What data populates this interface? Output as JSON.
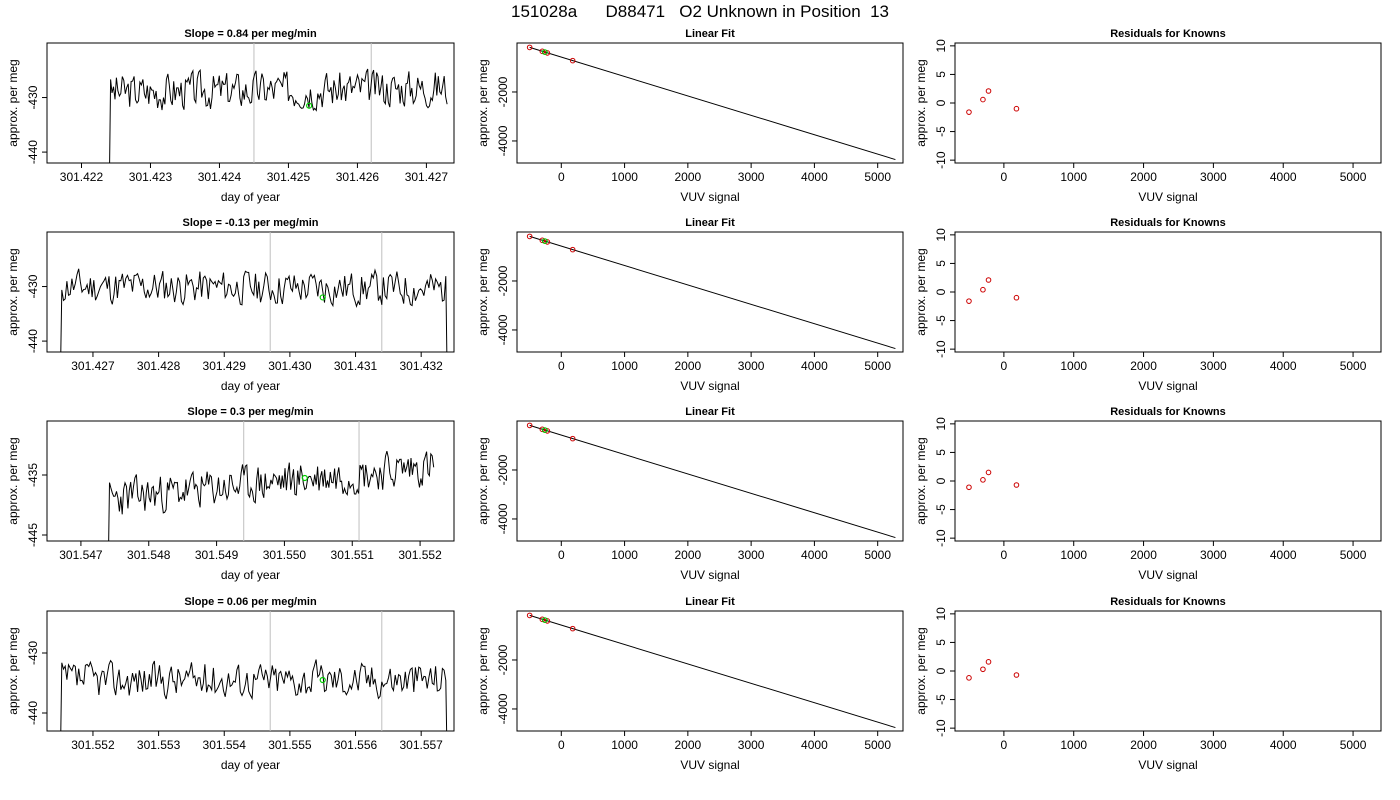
{
  "main_title": "151028a      D88471   O2 Unknown in Position  13",
  "colors": {
    "trace": "#000000",
    "marker_green": "#00cc00",
    "marker_red": "#cc0000",
    "vline": "#bfbfbf",
    "frame": "#000000"
  },
  "chart_data": [
    {
      "type": "line",
      "title": "Slope =  0.84  per meg/min",
      "xlabel": "day of year",
      "ylabel": "approx. per meg",
      "xlim": [
        301.4215,
        301.4274
      ],
      "ylim": [
        -442,
        -420
      ],
      "xticks": [
        301.422,
        301.423,
        301.424,
        301.425,
        301.426,
        301.427
      ],
      "xtick_labels": [
        "301.422",
        "301.423",
        "301.424",
        "301.425",
        "301.426",
        "301.427"
      ],
      "yticks": [
        -430,
        -440
      ],
      "ytick_labels": [
        "-430",
        "-440"
      ],
      "start_x": 301.4224,
      "end_x": 301.4273,
      "base": -429,
      "amp": 3.2,
      "trend": 0.9,
      "seed": 3,
      "vlines": [
        301.4245,
        301.4262
      ],
      "marker": {
        "x": 301.4253,
        "y": -431.5
      }
    },
    {
      "type": "scatter",
      "title": "Linear Fit",
      "xlabel": "VUV signal",
      "ylabel": "approx. per meg",
      "xlim": [
        -700,
        5400
      ],
      "ylim": [
        -4900,
        0
      ],
      "xticks": [
        0,
        1000,
        2000,
        3000,
        4000,
        5000
      ],
      "xtick_labels": [
        "0",
        "1000",
        "2000",
        "3000",
        "4000",
        "5000"
      ],
      "yticks": [
        -2000,
        -4000
      ],
      "ytick_labels": [
        "-2000",
        "-4000"
      ],
      "fit_line": {
        "x": [
          -500,
          5280
        ],
        "y": [
          -180,
          -4760
        ]
      },
      "knowns": [
        {
          "x": -500,
          "y": -180
        },
        {
          "x": -300,
          "y": -340
        },
        {
          "x": -220,
          "y": -405
        },
        {
          "x": 180,
          "y": -720
        }
      ],
      "unknown": {
        "x": -260,
        "y": -372
      }
    },
    {
      "type": "scatter",
      "title": "Residuals for Knowns",
      "xlabel": "VUV signal",
      "ylabel": "approx. per meg",
      "xlim": [
        -700,
        5400
      ],
      "ylim": [
        -10.5,
        10.5
      ],
      "xticks": [
        0,
        1000,
        2000,
        3000,
        4000,
        5000
      ],
      "xtick_labels": [
        "0",
        "1000",
        "2000",
        "3000",
        "4000",
        "5000"
      ],
      "yticks": [
        10,
        5,
        0,
        -5,
        -10
      ],
      "ytick_labels": [
        "10",
        "5",
        "0",
        "-5",
        "-10"
      ],
      "points": [
        {
          "x": -500,
          "y": -1.6
        },
        {
          "x": -300,
          "y": 0.6
        },
        {
          "x": -220,
          "y": 2.1
        },
        {
          "x": 180,
          "y": -1.0
        }
      ]
    },
    {
      "type": "line",
      "title": "Slope =  -0.13  per meg/min",
      "xlabel": "day of year",
      "ylabel": "approx. per meg",
      "xlim": [
        301.4263,
        301.4325
      ],
      "ylim": [
        -442,
        -420
      ],
      "xticks": [
        301.427,
        301.428,
        301.429,
        301.43,
        301.431,
        301.432
      ],
      "xtick_labels": [
        "301.427",
        "301.428",
        "301.429",
        "301.430",
        "301.431",
        "301.432"
      ],
      "yticks": [
        -430,
        -440
      ],
      "ytick_labels": [
        "-430",
        "-440"
      ],
      "start_x": 301.4265,
      "end_x": 301.4324,
      "base": -430,
      "amp": 3.0,
      "trend": -0.4,
      "seed": 11,
      "vlines": [
        301.4297,
        301.4314
      ],
      "marker": {
        "x": 301.4305,
        "y": -432.0
      }
    },
    {
      "type": "scatter",
      "title": "Linear Fit",
      "xlabel": "VUV signal",
      "ylabel": "approx. per meg",
      "xlim": [
        -700,
        5400
      ],
      "ylim": [
        -4900,
        0
      ],
      "xticks": [
        0,
        1000,
        2000,
        3000,
        4000,
        5000
      ],
      "xtick_labels": [
        "0",
        "1000",
        "2000",
        "3000",
        "4000",
        "5000"
      ],
      "yticks": [
        -2000,
        -4000
      ],
      "ytick_labels": [
        "-2000",
        "-4000"
      ],
      "fit_line": {
        "x": [
          -500,
          5280
        ],
        "y": [
          -180,
          -4760
        ]
      },
      "knowns": [
        {
          "x": -500,
          "y": -180
        },
        {
          "x": -300,
          "y": -340
        },
        {
          "x": -220,
          "y": -405
        },
        {
          "x": 180,
          "y": -720
        }
      ],
      "unknown": {
        "x": -260,
        "y": -372
      }
    },
    {
      "type": "scatter",
      "title": "Residuals for Knowns",
      "xlabel": "VUV signal",
      "ylabel": "approx. per meg",
      "xlim": [
        -700,
        5400
      ],
      "ylim": [
        -10.5,
        10.5
      ],
      "xticks": [
        0,
        1000,
        2000,
        3000,
        4000,
        5000
      ],
      "xtick_labels": [
        "0",
        "1000",
        "2000",
        "3000",
        "4000",
        "5000"
      ],
      "yticks": [
        10,
        5,
        0,
        -5,
        -10
      ],
      "ytick_labels": [
        "10",
        "5",
        "0",
        "-5",
        "-10"
      ],
      "points": [
        {
          "x": -500,
          "y": -1.6
        },
        {
          "x": -300,
          "y": 0.4
        },
        {
          "x": -220,
          "y": 2.1
        },
        {
          "x": 180,
          "y": -1.0
        }
      ]
    },
    {
      "type": "line",
      "title": "Slope =  0.3  per meg/min",
      "xlabel": "day of year",
      "ylabel": "approx. per meg",
      "xlim": [
        301.5465,
        301.5525
      ],
      "ylim": [
        -446,
        -426
      ],
      "xticks": [
        301.547,
        301.548,
        301.549,
        301.55,
        301.551,
        301.552
      ],
      "xtick_labels": [
        "301.547",
        "301.548",
        "301.549",
        "301.550",
        "301.551",
        "301.552"
      ],
      "yticks": [
        -435,
        -445
      ],
      "ytick_labels": [
        "-435",
        "-445"
      ],
      "start_x": 301.5474,
      "end_x": 301.5522,
      "base": -439,
      "amp": 3.0,
      "trend": 5.5,
      "seed": 23,
      "vlines": [
        301.5494,
        301.5511
      ],
      "marker": {
        "x": 301.5503,
        "y": -435.5
      }
    },
    {
      "type": "scatter",
      "title": "Linear Fit",
      "xlabel": "VUV signal",
      "ylabel": "approx. per meg",
      "xlim": [
        -700,
        5400
      ],
      "ylim": [
        -4900,
        0
      ],
      "xticks": [
        0,
        1000,
        2000,
        3000,
        4000,
        5000
      ],
      "xtick_labels": [
        "0",
        "1000",
        "2000",
        "3000",
        "4000",
        "5000"
      ],
      "yticks": [
        -2000,
        -4000
      ],
      "ytick_labels": [
        "-2000",
        "-4000"
      ],
      "fit_line": {
        "x": [
          -500,
          5280
        ],
        "y": [
          -180,
          -4760
        ]
      },
      "knowns": [
        {
          "x": -500,
          "y": -180
        },
        {
          "x": -300,
          "y": -340
        },
        {
          "x": -220,
          "y": -405
        },
        {
          "x": 180,
          "y": -720
        }
      ],
      "unknown": {
        "x": -260,
        "y": -372
      }
    },
    {
      "type": "scatter",
      "title": "Residuals for Knowns",
      "xlabel": "VUV signal",
      "ylabel": "approx. per meg",
      "xlim": [
        -700,
        5400
      ],
      "ylim": [
        -10.5,
        10.5
      ],
      "xticks": [
        0,
        1000,
        2000,
        3000,
        4000,
        5000
      ],
      "xtick_labels": [
        "0",
        "1000",
        "2000",
        "3000",
        "4000",
        "5000"
      ],
      "yticks": [
        10,
        5,
        0,
        -5,
        -10
      ],
      "ytick_labels": [
        "10",
        "5",
        "0",
        "-5",
        "-10"
      ],
      "points": [
        {
          "x": -500,
          "y": -1.1
        },
        {
          "x": -300,
          "y": 0.2
        },
        {
          "x": -220,
          "y": 1.5
        },
        {
          "x": 180,
          "y": -0.7
        }
      ]
    },
    {
      "type": "line",
      "title": "Slope =  0.06  per meg/min",
      "xlabel": "day of year",
      "ylabel": "approx. per meg",
      "xlim": [
        301.5513,
        301.5575
      ],
      "ylim": [
        -443,
        -423
      ],
      "xticks": [
        301.552,
        301.553,
        301.554,
        301.555,
        301.556,
        301.557
      ],
      "xtick_labels": [
        "301.552",
        "301.553",
        "301.554",
        "301.555",
        "301.556",
        "301.557"
      ],
      "yticks": [
        -430,
        -440
      ],
      "ytick_labels": [
        "-430",
        "-440"
      ],
      "start_x": 301.5515,
      "end_x": 301.5574,
      "base": -434.5,
      "amp": 2.8,
      "trend": 0.2,
      "seed": 37,
      "vlines": [
        301.5547,
        301.5564
      ],
      "marker": {
        "x": 301.5555,
        "y": -434.5
      }
    },
    {
      "type": "scatter",
      "title": "Linear Fit",
      "xlabel": "VUV signal",
      "ylabel": "approx. per meg",
      "xlim": [
        -700,
        5400
      ],
      "ylim": [
        -4900,
        0
      ],
      "xticks": [
        0,
        1000,
        2000,
        3000,
        4000,
        5000
      ],
      "xtick_labels": [
        "0",
        "1000",
        "2000",
        "3000",
        "4000",
        "5000"
      ],
      "yticks": [
        -2000,
        -4000
      ],
      "ytick_labels": [
        "-2000",
        "-4000"
      ],
      "fit_line": {
        "x": [
          -500,
          5280
        ],
        "y": [
          -180,
          -4760
        ]
      },
      "knowns": [
        {
          "x": -500,
          "y": -180
        },
        {
          "x": -300,
          "y": -340
        },
        {
          "x": -220,
          "y": -405
        },
        {
          "x": 180,
          "y": -720
        }
      ],
      "unknown": {
        "x": -260,
        "y": -372
      }
    },
    {
      "type": "scatter",
      "title": "Residuals for Knowns",
      "xlabel": "VUV signal",
      "ylabel": "approx. per meg",
      "xlim": [
        -700,
        5400
      ],
      "ylim": [
        -10.5,
        10.5
      ],
      "xticks": [
        0,
        1000,
        2000,
        3000,
        4000,
        5000
      ],
      "xtick_labels": [
        "0",
        "1000",
        "2000",
        "3000",
        "4000",
        "5000"
      ],
      "yticks": [
        10,
        5,
        0,
        -5,
        -10
      ],
      "ytick_labels": [
        "10",
        "5",
        "0",
        "-5",
        "-10"
      ],
      "points": [
        {
          "x": -500,
          "y": -1.2
        },
        {
          "x": -300,
          "y": 0.3
        },
        {
          "x": -220,
          "y": 1.6
        },
        {
          "x": 180,
          "y": -0.7
        }
      ]
    }
  ]
}
